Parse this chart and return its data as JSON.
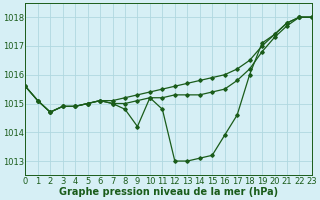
{
  "title": "Graphe pression niveau de la mer (hPa)",
  "background_color": "#d6eff5",
  "grid_color": "#b0d8e0",
  "line_color": "#1a5c1a",
  "x_min": 0,
  "x_max": 23,
  "y_min": 1012.5,
  "y_max": 1018.5,
  "yticks": [
    1013,
    1014,
    1015,
    1016,
    1017,
    1018
  ],
  "xticks": [
    0,
    1,
    2,
    3,
    4,
    5,
    6,
    7,
    8,
    9,
    10,
    11,
    12,
    13,
    14,
    15,
    16,
    17,
    18,
    19,
    20,
    21,
    22,
    23
  ],
  "series": [
    [
      1015.6,
      1015.1,
      1014.7,
      1014.9,
      1014.9,
      1015.0,
      1015.1,
      1015.1,
      1015.2,
      1015.3,
      1015.4,
      1015.5,
      1015.6,
      1015.7,
      1015.8,
      1015.9,
      1016.0,
      1016.2,
      1016.5,
      1017.0,
      1017.4,
      1017.8,
      1018.0,
      1018.0
    ],
    [
      1015.6,
      1015.1,
      1014.7,
      1014.9,
      1014.9,
      1015.0,
      1015.1,
      1015.0,
      1015.0,
      1015.1,
      1015.2,
      1015.2,
      1015.3,
      1015.3,
      1015.3,
      1015.4,
      1015.5,
      1015.8,
      1016.2,
      1016.8,
      1017.3,
      1017.7,
      1018.0,
      1018.0
    ],
    [
      1015.6,
      1015.1,
      1014.7,
      1014.9,
      1014.9,
      1015.0,
      1015.1,
      1015.0,
      1014.8,
      1014.2,
      1015.2,
      1014.8,
      1013.0,
      1013.0,
      1013.1,
      1013.2,
      1013.9,
      1014.6,
      1016.0,
      1017.1,
      1017.4,
      1017.8,
      1018.0,
      1018.0
    ]
  ],
  "xlabel_fontsize": 7.0,
  "tick_fontsize": 6.0,
  "figwidth": 3.2,
  "figheight": 2.0,
  "dpi": 100
}
